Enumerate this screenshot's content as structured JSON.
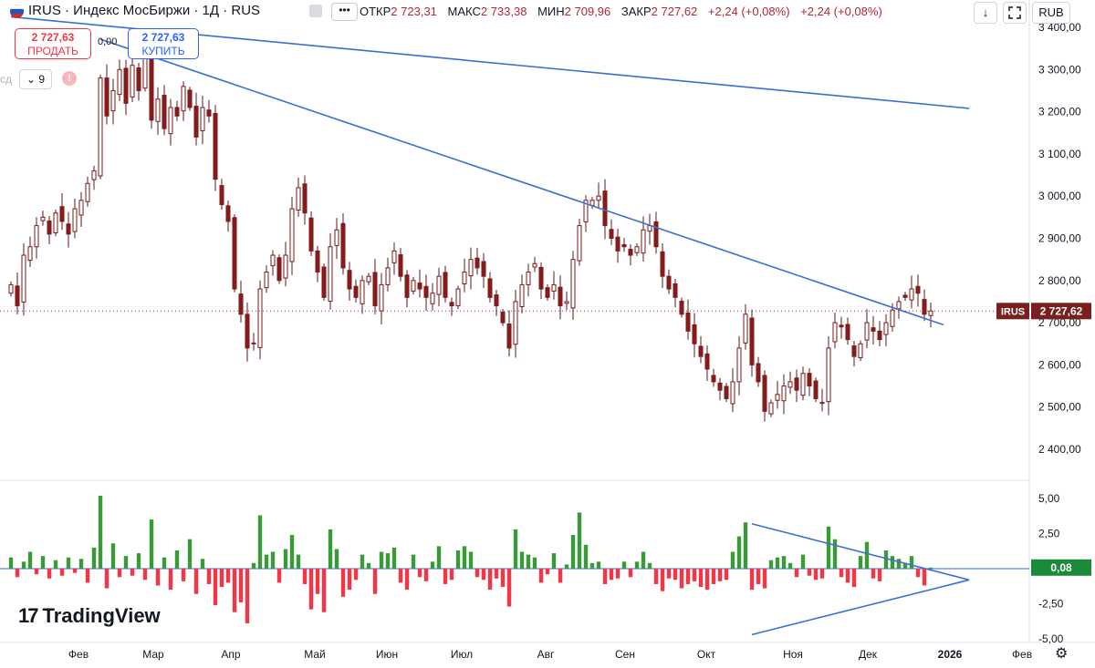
{
  "header": {
    "symbol_title": "IRUS · Индекс МосБиржи · 1Д · RUS",
    "more_label": "•••",
    "ohlc": [
      {
        "key": "ОТКР",
        "value": "2 723,31"
      },
      {
        "key": "МАКС",
        "value": "2 733,38"
      },
      {
        "key": "МИН",
        "value": "2 709,96"
      },
      {
        "key": "ЗАКР",
        "value": "2 727,62"
      }
    ],
    "change_1": "+2,24 (+0,08%)",
    "change_2": "+2,24 (+0,08%)",
    "down_arrow": "↓",
    "currency": "RUB"
  },
  "trade": {
    "sell_price": "2 727,63",
    "sell_label": "ПРОДАТЬ",
    "spread": "0,00",
    "buy_price": "2 727,63",
    "buy_label": "КУПИТЬ"
  },
  "indicators": {
    "left_text": "сд",
    "count": "9",
    "warn": "!"
  },
  "logo": {
    "text": "TradingView"
  },
  "colors": {
    "up": "#2e7d32",
    "down": "#8b1a1a",
    "trend": "#3b6fd4",
    "hist_up": "#3a9a3a",
    "hist_down": "#f23645",
    "badge": "#7a1f1f",
    "badge_green": "#1b8a3a"
  },
  "chart_data": [
    {
      "type": "candlestick",
      "symbol": "IRUS",
      "y_ticks": [
        "3 400,00",
        "3 300,00",
        "3 200,00",
        "3 100,00",
        "3 000,00",
        "2 900,00",
        "2 800,00",
        "2 700,00",
        "2 600,00",
        "2 500,00",
        "2 400,00"
      ],
      "y_tick_values": [
        3400,
        3300,
        3200,
        3100,
        3000,
        2900,
        2800,
        2700,
        2600,
        2500,
        2400
      ],
      "ylim": [
        2340,
        3420
      ],
      "x_ticks": [
        "Фев",
        "Мар",
        "Апр",
        "Май",
        "Июн",
        "Июл",
        "Авг",
        "Сен",
        "Окт",
        "Ноя",
        "Дек",
        "2026",
        "Фев"
      ],
      "last_price_label": "IRUS",
      "last_price": "2 727,62",
      "last_price_value": 2727.62,
      "close_series": [
        2790,
        2740,
        2860,
        2880,
        2930,
        2950,
        2910,
        2960,
        2940,
        2910,
        2970,
        2990,
        3030,
        3060,
        3280,
        3190,
        3250,
        3300,
        3220,
        3310,
        3250,
        3340,
        3180,
        3230,
        3160,
        3210,
        3190,
        3260,
        3210,
        3140,
        3210,
        3190,
        3040,
        2980,
        2940,
        2780,
        2720,
        2640,
        2650,
        2780,
        2820,
        2860,
        2800,
        2860,
        2970,
        3020,
        2960,
        2870,
        2820,
        2760,
        2880,
        2920,
        2830,
        2780,
        2760,
        2800,
        2810,
        2740,
        2790,
        2830,
        2870,
        2810,
        2760,
        2800,
        2780,
        2760,
        2770,
        2810,
        2760,
        2740,
        2780,
        2820,
        2850,
        2830,
        2810,
        2760,
        2740,
        2700,
        2640,
        2750,
        2790,
        2820,
        2840,
        2780,
        2760,
        2790,
        2740,
        2750,
        2850,
        2930,
        2990,
        2990,
        3000,
        2930,
        2900,
        2870,
        2880,
        2860,
        2880,
        2920,
        2930,
        2880,
        2810,
        2780,
        2760,
        2720,
        2680,
        2650,
        2620,
        2590,
        2560,
        2540,
        2520,
        2560,
        2640,
        2720,
        2600,
        2560,
        2490,
        2510,
        2530,
        2550,
        2560,
        2540,
        2580,
        2550,
        2520,
        2510,
        2640,
        2700,
        2690,
        2660,
        2620,
        2650,
        2700,
        2680,
        2660,
        2700,
        2730,
        2750,
        2760,
        2780,
        2770,
        2720,
        2727.62
      ],
      "trendlines": [
        {
          "from": {
            "t": 0,
            "v": 3425
          },
          "to": {
            "t": 150,
            "v": 3208
          }
        },
        {
          "from": {
            "t": 14,
            "v": 3372
          },
          "to": {
            "t": 146,
            "v": 2695
          }
        }
      ]
    },
    {
      "type": "histogram",
      "y_ticks": [
        "5,00",
        "2,50",
        "-2,50",
        "-5,00"
      ],
      "y_tick_values": [
        5,
        2.5,
        -2.5,
        -5
      ],
      "ylim": [
        -5.3,
        6.3
      ],
      "last_value_label": "0,08",
      "last_value": 0.08,
      "values": [
        0.8,
        -0.6,
        0.5,
        1.2,
        -0.4,
        0.9,
        -0.7,
        0.6,
        -0.5,
        0.8,
        -0.3,
        0.7,
        -1.0,
        1.5,
        5.2,
        -1.4,
        1.8,
        -0.6,
        0.9,
        -0.5,
        1.1,
        -0.8,
        3.5,
        -1.2,
        0.8,
        -1.5,
        1.3,
        -0.9,
        2.1,
        -1.8,
        0.7,
        -1.1,
        -2.6,
        -1.3,
        -1.0,
        -3.1,
        -2.4,
        -3.9,
        0.4,
        3.8,
        1.0,
        1.2,
        -1.0,
        1.4,
        2.4,
        1.0,
        -1.1,
        -2.9,
        -1.8,
        -3.1,
        2.8,
        1.4,
        -2.0,
        -1.5,
        -0.8,
        1.0,
        0.4,
        -1.8,
        1.2,
        1.1,
        1.5,
        -1.0,
        -1.5,
        1.0,
        -0.6,
        -0.9,
        0.5,
        1.6,
        -1.1,
        -0.8,
        1.3,
        1.6,
        1.2,
        -0.6,
        -0.8,
        -1.5,
        -0.7,
        -1.3,
        -2.7,
        2.8,
        1.2,
        1.0,
        0.8,
        -1.0,
        -0.4,
        1.1,
        -1.0,
        0.3,
        2.4,
        4.0,
        1.7,
        0.4,
        0.5,
        -1.1,
        -0.8,
        -0.7,
        0.5,
        -0.6,
        0.5,
        1.2,
        0.4,
        -1.1,
        -1.6,
        -0.7,
        -0.8,
        -1.4,
        -1.1,
        -0.9,
        -1.3,
        -1.5,
        -1.1,
        -0.9,
        -0.8,
        1.2,
        2.3,
        3.3,
        -1.5,
        -1.1,
        -1.4,
        0.6,
        0.8,
        0.9,
        0.4,
        -0.6,
        1.0,
        -0.5,
        -0.8,
        -0.7,
        3.0,
        2.1,
        -0.6,
        -1.0,
        -1.3,
        0.9,
        1.9,
        -0.7,
        -0.9,
        1.3,
        0.9,
        0.7,
        0.4,
        0.9,
        -0.6,
        -1.2,
        0.08
      ],
      "trendlines": [
        {
          "from": {
            "t": 116,
            "v": 3.2
          },
          "to": {
            "t": 150,
            "v": -0.8
          }
        },
        {
          "from": {
            "t": 116,
            "v": -4.7
          },
          "to": {
            "t": 150,
            "v": -0.8
          }
        }
      ]
    }
  ]
}
